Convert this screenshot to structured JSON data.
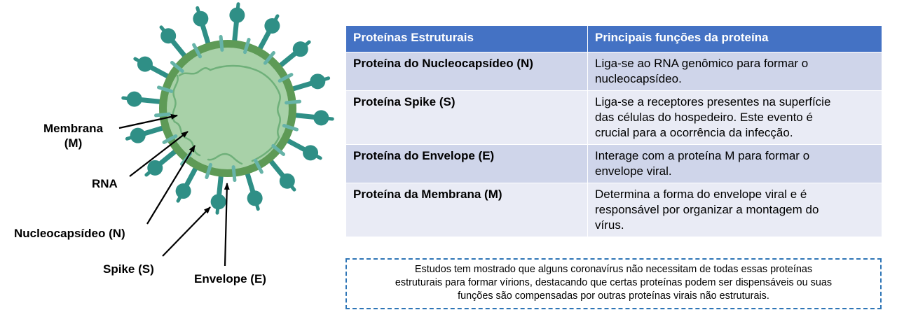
{
  "labels": {
    "membrane": [
      "Membrana",
      "(M)"
    ],
    "rna": "RNA",
    "nucleocapsid": "Nucleocapsídeo (N)",
    "spike": "Spike (S)",
    "envelope": "Envelope (E)"
  },
  "table": {
    "headers": [
      "Proteínas Estruturais",
      "Principais funções da proteína"
    ],
    "rows": [
      {
        "protein": "Proteína do Nucleocapsídeo  (N)",
        "function": [
          "Liga-se ao RNA genômico para formar o",
          "nucleocapsídeo."
        ]
      },
      {
        "protein": "Proteína Spike (S)",
        "function": [
          "Liga-se a receptores presentes na superfície",
          "das células do hospedeiro. Este evento é",
          "crucial para a ocorrência da infecção."
        ]
      },
      {
        "protein": "Proteína do Envelope (E)",
        "function": [
          "Interage com a proteína M para formar o",
          "envelope viral."
        ]
      },
      {
        "protein": "Proteína da Membrana (M)",
        "function": [
          "Determina a forma do envelope viral e é",
          "responsável por organizar a montagem do",
          "vírus."
        ]
      }
    ]
  },
  "note": [
    "Estudos tem mostrado que alguns coronavírus não necessitam de todas essas proteínas",
    "estruturais para formar vírions, destacando que certas proteínas podem ser dispensáveis ou suas",
    "funções são compensadas por outras proteínas virais não estruturais."
  ],
  "colors": {
    "spike": "#2f8f86",
    "membrane": "#5e9a56",
    "interior": "#a8d1a8",
    "rna": "#6fb07a",
    "header": "#4472c4",
    "row_odd": "#cfd5ea",
    "row_even": "#e9ebf5",
    "note_border": "#2e75b6"
  }
}
